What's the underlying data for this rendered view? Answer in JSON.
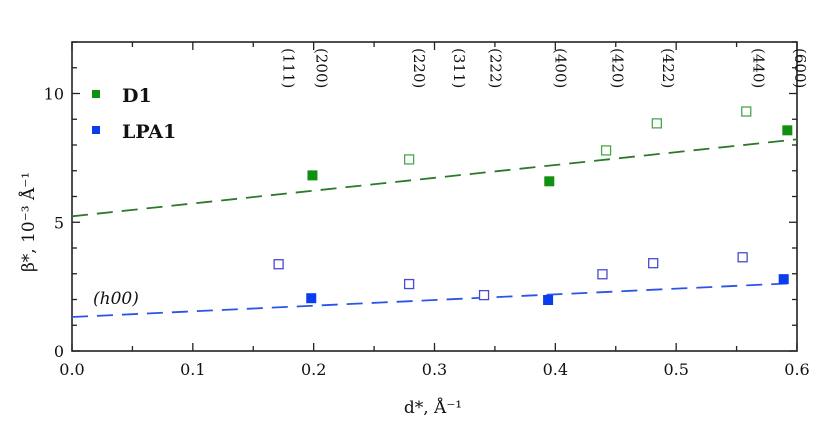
{
  "chart_data": {
    "type": "scatter",
    "xlabel": "d*, Å⁻¹",
    "ylabel": "β*, 10⁻³ Å⁻¹",
    "xlim": [
      0.0,
      0.6
    ],
    "ylim": [
      0,
      12
    ],
    "xticks": [
      "0.0",
      "0.1",
      "0.2",
      "0.3",
      "0.4",
      "0.5",
      "0.6"
    ],
    "yticks": [
      "0",
      "5",
      "10"
    ],
    "grid": false,
    "legend_placement": "top-left",
    "annotation": "(h00)",
    "reflections": [
      {
        "label": "(111)",
        "x": 0.171
      },
      {
        "label": "(200)",
        "x": 0.198
      },
      {
        "label": "(220)",
        "x": 0.279
      },
      {
        "label": "(311)",
        "x": 0.312
      },
      {
        "label": "(222)",
        "x": 0.342
      },
      {
        "label": "(400)",
        "x": 0.396
      },
      {
        "label": "(420)",
        "x": 0.443
      },
      {
        "label": "(422)",
        "x": 0.485
      },
      {
        "label": "(440)",
        "x": 0.56
      },
      {
        "label": "(600)",
        "x": 0.594
      }
    ],
    "series": [
      {
        "name": "D1",
        "color": "#109010",
        "open_color": "#4aa84a",
        "line_color": "#2a7a2a",
        "filled": [
          [
            0.199,
            6.82
          ],
          [
            0.395,
            6.59
          ],
          [
            0.592,
            8.57
          ]
        ],
        "open": [
          [
            0.279,
            7.44
          ],
          [
            0.442,
            7.79
          ],
          [
            0.484,
            8.84
          ],
          [
            0.558,
            9.3
          ]
        ],
        "fit": [
          [
            0.0,
            5.23
          ],
          [
            0.6,
            8.22
          ]
        ]
      },
      {
        "name": "LPA1",
        "color": "#0a3cf0",
        "open_color": "#4a4ad0",
        "line_color": "#2a55e8",
        "filled": [
          [
            0.198,
            2.05
          ],
          [
            0.394,
            1.98
          ],
          [
            0.589,
            2.79
          ]
        ],
        "open": [
          [
            0.171,
            3.37
          ],
          [
            0.279,
            2.6
          ],
          [
            0.341,
            2.17
          ],
          [
            0.439,
            2.98
          ],
          [
            0.481,
            3.41
          ],
          [
            0.555,
            3.64
          ]
        ],
        "fit": [
          [
            0.0,
            1.32
          ],
          [
            0.6,
            2.64
          ]
        ]
      }
    ]
  }
}
